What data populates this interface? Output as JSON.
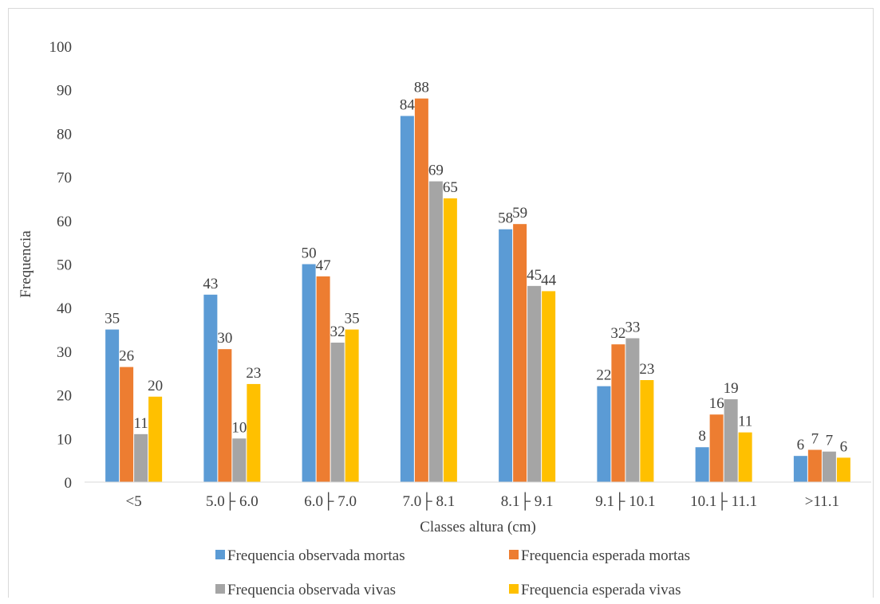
{
  "chart_data": {
    "type": "bar",
    "title": "",
    "xlabel": "Classes altura (cm)",
    "ylabel": "Frequencia",
    "ylim": [
      0,
      100
    ],
    "yticks": [
      0,
      10,
      20,
      30,
      40,
      50,
      60,
      70,
      80,
      90,
      100
    ],
    "grid": false,
    "legend_position": "bottom",
    "categories": [
      "<5",
      "5.0├ 6.0",
      "6.0├ 7.0",
      "7.0├ 8.1",
      "8.1├ 9.1",
      "9.1├ 10.1",
      "10.1├ 11.1",
      ">11.1"
    ],
    "series": [
      {
        "name": "Frequencia observada mortas",
        "color": "#5b9bd5",
        "values": [
          35,
          43,
          50,
          84,
          58,
          22,
          8,
          6
        ],
        "labels": [
          "35",
          "43",
          "50",
          "84",
          "58",
          "22",
          "8",
          "6"
        ]
      },
      {
        "name": "Frequencia esperada mortas",
        "color": "#ed7d31",
        "values": [
          26.4,
          30.5,
          47.2,
          88,
          59.2,
          31.6,
          15.5,
          7.4
        ],
        "labels": [
          "26",
          "30",
          "47",
          "88",
          "59",
          "32",
          "16",
          "7"
        ]
      },
      {
        "name": "Frequencia observada  vivas",
        "color": "#a5a5a5",
        "values": [
          11,
          10,
          32,
          69,
          45,
          33,
          19,
          7
        ],
        "labels": [
          "11",
          "10",
          "32",
          "69",
          "45",
          "33",
          "19",
          "7"
        ]
      },
      {
        "name": "Frequencia esperada vivas",
        "color": "#ffc000",
        "values": [
          19.6,
          22.5,
          35,
          65.1,
          43.8,
          23.4,
          11.4,
          5.6
        ],
        "labels": [
          "20",
          "23",
          "35",
          "65",
          "44",
          "23",
          "11",
          "6"
        ]
      }
    ]
  }
}
